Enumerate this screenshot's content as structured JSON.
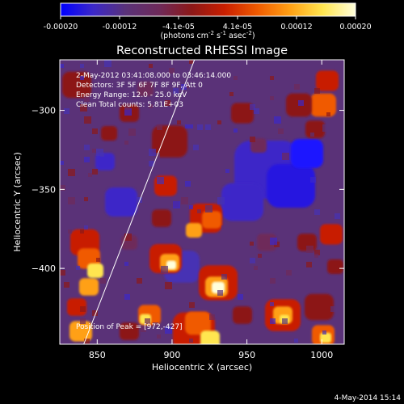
{
  "colorbar": {
    "ticks": [
      "-0.00020",
      "-0.00012",
      "-4.1e-05",
      "4.1e-05",
      "0.00012",
      "0.00020"
    ],
    "unit_prefix": "(photons cm",
    "unit_sup1": "-2",
    "unit_mid1": " s",
    "unit_sup2": "-1",
    "unit_mid2": " asec",
    "unit_sup3": "-2",
    "unit_suffix": ")",
    "gradient_colors": [
      "#0000ff",
      "#3c28c8",
      "#5a3278",
      "#6e2a5a",
      "#8c1818",
      "#c81e00",
      "#f05a00",
      "#ffa014",
      "#ffe650",
      "#ffffdc"
    ]
  },
  "chart_data": {
    "type": "heatmap",
    "title": "Reconstructed RHESSI Image",
    "xlabel": "Heliocentric X (arcsec)",
    "ylabel": "Heliocentric Y (arcsec)",
    "x_ticks": [
      850,
      900,
      950,
      1000
    ],
    "y_ticks": [
      -300,
      -350,
      -400
    ],
    "xlim": [
      825,
      1015
    ],
    "ylim": [
      -448,
      -268
    ],
    "value_range": [
      -0.0002,
      0.0002
    ],
    "annotations": [
      "2-May-2012 03:41:08.000 to 03:46:14.000",
      "Detectors: 3F 5F 6F 7F 8F 9F, Att 0",
      "Energy Range: 12.0 - 25.0 keV",
      "Clean     Total counts: 5.81E+03"
    ],
    "peak_label": "Position of Peak = [972,-427]",
    "limb_line": [
      [
        841,
        -448
      ],
      [
        915,
        -268
      ]
    ]
  },
  "footer": {
    "timestamp": "4-May-2014 15:14"
  }
}
